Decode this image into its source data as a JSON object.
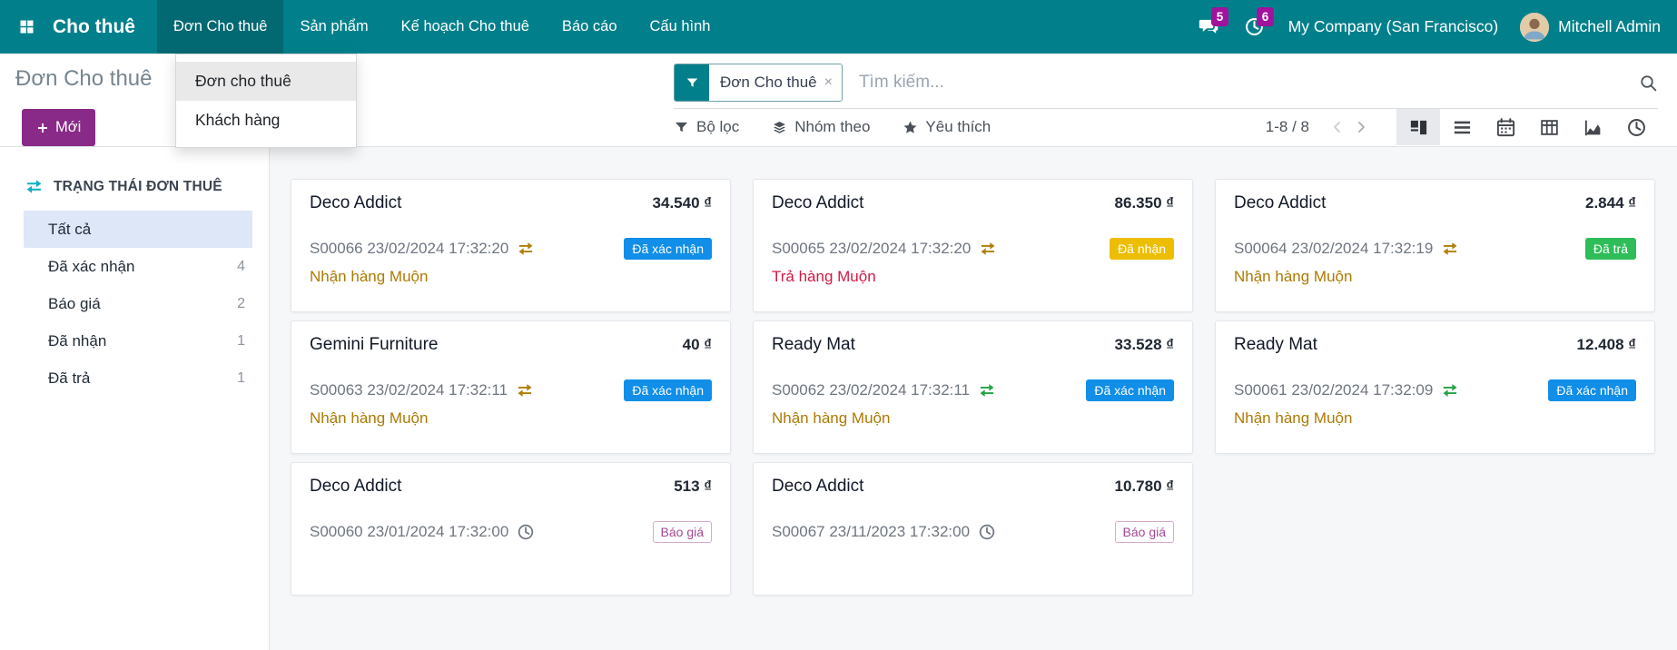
{
  "colors": {
    "topbar_bg": "#01808B",
    "topbar_active_bg": "#026972",
    "accent_magenta": "#8A2A88",
    "notification_badge": "#A1129D",
    "badge_confirmed_blue": "#108EE8",
    "badge_picked_up_yellow": "#EDBD01",
    "badge_returned_green": "#2EBD59",
    "badge_quotation_magenta": "#A34A93",
    "late_amber": "#AD7A02",
    "late_red": "#D11A45",
    "sidebar_icon_cyan": "#0EAFC0",
    "sidebar_active_bg": "#DEE7F7"
  },
  "topbar": {
    "app_name": "Cho thuê",
    "menus": [
      {
        "label": "Đơn Cho thuê",
        "active": true
      },
      {
        "label": "Sản phẩm",
        "active": false
      },
      {
        "label": "Kế hoạch Cho thuê",
        "active": false
      },
      {
        "label": "Báo cáo",
        "active": false
      },
      {
        "label": "Cấu hình",
        "active": false
      }
    ],
    "messages_count": "5",
    "activities_count": "6",
    "company_name": "My Company (San Francisco)",
    "user_name": "Mitchell Admin"
  },
  "menu_dropdown": {
    "items": [
      {
        "label": "Đơn cho thuê",
        "highlighted": true
      },
      {
        "label": "Khách hàng",
        "highlighted": false
      }
    ]
  },
  "control_panel": {
    "breadcrumb": "Đơn Cho thuê",
    "new_button_label": "Mới",
    "search": {
      "facet": "Đơn Cho thuê",
      "placeholder": "Tìm kiếm..."
    },
    "filter_button": "Bộ lọc",
    "group_by_button": "Nhóm theo",
    "favorites_button": "Yêu thích",
    "pager": "1-8 / 8"
  },
  "sidebar": {
    "section_title": "TRẠNG THÁI ĐƠN THUÊ",
    "items": [
      {
        "label": "Tất cả",
        "count": "",
        "active": true
      },
      {
        "label": "Đã xác nhận",
        "count": "4",
        "active": false
      },
      {
        "label": "Báo giá",
        "count": "2",
        "active": false
      },
      {
        "label": "Đã nhận",
        "count": "1",
        "active": false
      },
      {
        "label": "Đã trả",
        "count": "1",
        "active": false
      }
    ]
  },
  "kanban": {
    "cards": [
      {
        "customer": "Deco Addict",
        "amount": "34.540 ₫",
        "reference": "S00066 23/02/2024 17:32:20",
        "icon": "swap",
        "icon_color": "amber",
        "badge": "Đã xác nhận",
        "badge_type": "confirmed",
        "late_text": "Nhận hàng Muộn",
        "late_type": "amber"
      },
      {
        "customer": "Deco Addict",
        "amount": "86.350 ₫",
        "reference": "S00065 23/02/2024 17:32:20",
        "icon": "swap",
        "icon_color": "amber",
        "badge": "Đã nhận",
        "badge_type": "picked_up",
        "late_text": "Trả hàng Muộn",
        "late_type": "red"
      },
      {
        "customer": "Deco Addict",
        "amount": "2.844 ₫",
        "reference": "S00064 23/02/2024 17:32:19",
        "icon": "swap",
        "icon_color": "amber",
        "badge": "Đã trả",
        "badge_type": "returned",
        "late_text": "Nhận hàng Muộn",
        "late_type": "amber"
      },
      {
        "customer": "Gemini Furniture",
        "amount": "40 ₫",
        "reference": "S00063 23/02/2024 17:32:11",
        "icon": "swap",
        "icon_color": "amber",
        "badge": "Đã xác nhận",
        "badge_type": "confirmed",
        "late_text": "Nhận hàng Muộn",
        "late_type": "amber"
      },
      {
        "customer": "Ready Mat",
        "amount": "33.528 ₫",
        "reference": "S00062 23/02/2024 17:32:11",
        "icon": "swap",
        "icon_color": "green",
        "badge": "Đã xác nhận",
        "badge_type": "confirmed",
        "late_text": "Nhận hàng Muộn",
        "late_type": "amber"
      },
      {
        "customer": "Ready Mat",
        "amount": "12.408 ₫",
        "reference": "S00061 23/02/2024 17:32:09",
        "icon": "swap",
        "icon_color": "green",
        "badge": "Đã xác nhận",
        "badge_type": "confirmed",
        "late_text": "Nhận hàng Muộn",
        "late_type": "amber"
      },
      {
        "customer": "Deco Addict",
        "amount": "513 ₫",
        "reference": "S00060 23/01/2024 17:32:00",
        "icon": "clock",
        "icon_color": "gray",
        "badge": "Báo giá",
        "badge_type": "quotation",
        "late_text": "",
        "late_type": ""
      },
      {
        "customer": "Deco Addict",
        "amount": "10.780 ₫",
        "reference": "S00067 23/11/2023 17:32:00",
        "icon": "clock",
        "icon_color": "gray",
        "badge": "Báo giá",
        "badge_type": "quotation",
        "late_text": "",
        "late_type": ""
      }
    ]
  }
}
